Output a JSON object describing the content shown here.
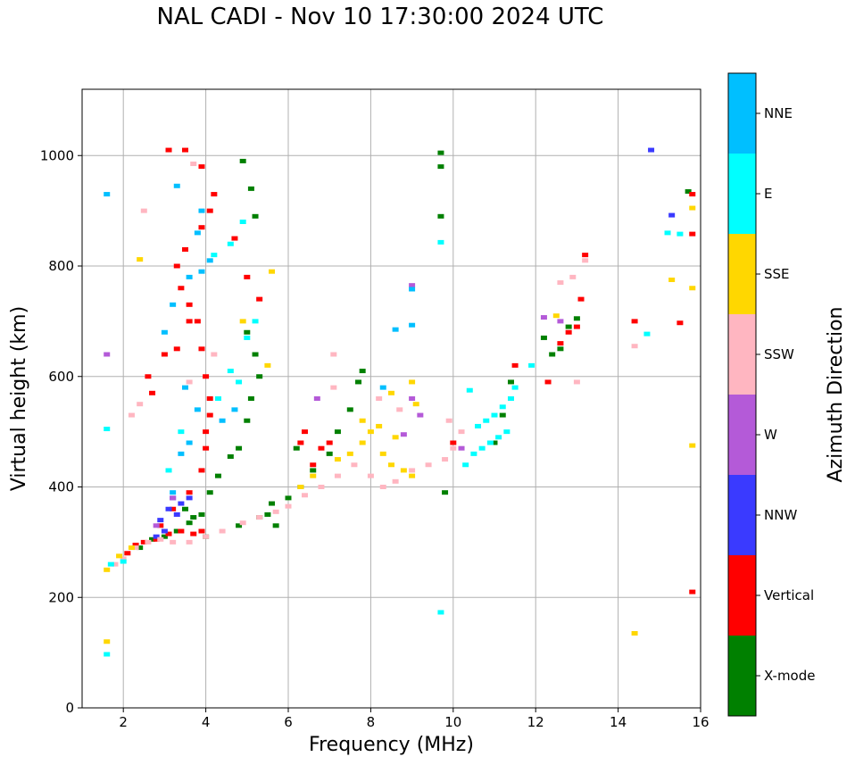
{
  "chart_data": {
    "type": "scatter",
    "title": "NAL CADI - Nov 10 17:30:00 2024 UTC",
    "xlabel": "Frequency (MHz)",
    "ylabel": "Virtual height (km)",
    "xlim": [
      1,
      16
    ],
    "ylim": [
      0,
      1120
    ],
    "xticks": [
      2,
      4,
      6,
      8,
      10,
      12,
      14,
      16
    ],
    "yticks": [
      0,
      200,
      400,
      600,
      800,
      1000
    ],
    "grid": true,
    "colorbar": {
      "label": "Azimuth Direction",
      "categories": [
        {
          "name": "X-mode",
          "color": "#008000"
        },
        {
          "name": "Vertical",
          "color": "#ff0000"
        },
        {
          "name": "NNW",
          "color": "#3a3aff"
        },
        {
          "name": "W",
          "color": "#b45ad8"
        },
        {
          "name": "SSW",
          "color": "#ffb6c1"
        },
        {
          "name": "SSE",
          "color": "#ffd700"
        },
        {
          "name": "E",
          "color": "#00ffff"
        },
        {
          "name": "NNE",
          "color": "#00bfff"
        }
      ]
    },
    "series": [
      {
        "name": "X-mode",
        "points": [
          [
            2.4,
            290
          ],
          [
            2.7,
            305
          ],
          [
            3.0,
            310
          ],
          [
            3.3,
            320
          ],
          [
            3.6,
            335
          ],
          [
            3.9,
            350
          ],
          [
            4.1,
            390
          ],
          [
            4.3,
            420
          ],
          [
            4.6,
            455
          ],
          [
            4.8,
            470
          ],
          [
            5.0,
            520
          ],
          [
            5.1,
            560
          ],
          [
            5.3,
            600
          ],
          [
            5.2,
            640
          ],
          [
            5.0,
            680
          ],
          [
            4.8,
            330
          ],
          [
            5.3,
            345
          ],
          [
            5.6,
            370
          ],
          [
            6.0,
            380
          ],
          [
            6.3,
            400
          ],
          [
            6.6,
            430
          ],
          [
            7.0,
            460
          ],
          [
            7.2,
            500
          ],
          [
            7.5,
            540
          ],
          [
            7.7,
            590
          ],
          [
            7.8,
            610
          ],
          [
            6.2,
            470
          ],
          [
            4.9,
            990
          ],
          [
            5.1,
            940
          ],
          [
            5.2,
            890
          ],
          [
            9.7,
            1005
          ],
          [
            9.7,
            980
          ],
          [
            9.7,
            890
          ],
          [
            9.8,
            390
          ],
          [
            11.0,
            480
          ],
          [
            11.2,
            530
          ],
          [
            11.4,
            590
          ],
          [
            12.4,
            640
          ],
          [
            12.6,
            650
          ],
          [
            12.8,
            690
          ],
          [
            13.0,
            705
          ],
          [
            12.2,
            670
          ],
          [
            15.7,
            935
          ],
          [
            3.5,
            360
          ],
          [
            3.7,
            345
          ],
          [
            4.0,
            310
          ],
          [
            5.7,
            330
          ],
          [
            5.5,
            350
          ]
        ]
      },
      {
        "name": "Vertical",
        "points": [
          [
            2.1,
            280
          ],
          [
            2.3,
            295
          ],
          [
            2.5,
            300
          ],
          [
            2.8,
            305
          ],
          [
            3.1,
            315
          ],
          [
            3.4,
            320
          ],
          [
            3.7,
            315
          ],
          [
            3.9,
            320
          ],
          [
            2.9,
            330
          ],
          [
            3.2,
            360
          ],
          [
            3.6,
            390
          ],
          [
            3.9,
            430
          ],
          [
            4.0,
            470
          ],
          [
            4.0,
            500
          ],
          [
            4.1,
            530
          ],
          [
            4.1,
            560
          ],
          [
            4.0,
            600
          ],
          [
            3.9,
            650
          ],
          [
            3.8,
            700
          ],
          [
            3.6,
            730
          ],
          [
            3.4,
            760
          ],
          [
            3.3,
            800
          ],
          [
            3.5,
            830
          ],
          [
            3.9,
            870
          ],
          [
            4.1,
            900
          ],
          [
            4.2,
            930
          ],
          [
            3.9,
            980
          ],
          [
            3.1,
            1010
          ],
          [
            3.5,
            1010
          ],
          [
            2.6,
            600
          ],
          [
            2.7,
            570
          ],
          [
            3.0,
            640
          ],
          [
            3.3,
            650
          ],
          [
            3.6,
            700
          ],
          [
            4.7,
            850
          ],
          [
            5.0,
            780
          ],
          [
            5.3,
            740
          ],
          [
            6.3,
            480
          ],
          [
            6.4,
            500
          ],
          [
            6.8,
            470
          ],
          [
            7.0,
            480
          ],
          [
            6.6,
            440
          ],
          [
            10.0,
            480
          ],
          [
            11.5,
            620
          ],
          [
            12.3,
            590
          ],
          [
            12.6,
            660
          ],
          [
            12.8,
            680
          ],
          [
            13.0,
            690
          ],
          [
            13.1,
            740
          ],
          [
            13.2,
            820
          ],
          [
            14.4,
            700
          ],
          [
            15.5,
            697
          ],
          [
            15.8,
            858
          ],
          [
            15.8,
            930
          ],
          [
            15.8,
            210
          ]
        ]
      },
      {
        "name": "NNW",
        "points": [
          [
            2.9,
            340
          ],
          [
            3.1,
            360
          ],
          [
            3.2,
            380
          ],
          [
            3.3,
            350
          ],
          [
            3.4,
            370
          ],
          [
            3.0,
            320
          ],
          [
            2.8,
            310
          ],
          [
            15.3,
            892
          ],
          [
            14.8,
            1010
          ],
          [
            3.6,
            380
          ]
        ]
      },
      {
        "name": "W",
        "points": [
          [
            3.2,
            380
          ],
          [
            2.8,
            330
          ],
          [
            6.7,
            560
          ],
          [
            9.0,
            560
          ],
          [
            9.0,
            765
          ],
          [
            9.2,
            530
          ],
          [
            8.8,
            495
          ],
          [
            10.2,
            470
          ],
          [
            12.2,
            707
          ],
          [
            1.6,
            640
          ],
          [
            12.6,
            700
          ]
        ]
      },
      {
        "name": "SSW",
        "points": [
          [
            1.8,
            260
          ],
          [
            2.0,
            270
          ],
          [
            2.3,
            290
          ],
          [
            2.6,
            300
          ],
          [
            2.9,
            305
          ],
          [
            3.2,
            300
          ],
          [
            3.6,
            300
          ],
          [
            4.0,
            310
          ],
          [
            4.4,
            320
          ],
          [
            4.9,
            335
          ],
          [
            5.3,
            345
          ],
          [
            5.7,
            355
          ],
          [
            6.0,
            365
          ],
          [
            6.4,
            385
          ],
          [
            6.8,
            400
          ],
          [
            7.2,
            420
          ],
          [
            7.6,
            440
          ],
          [
            8.0,
            420
          ],
          [
            8.3,
            400
          ],
          [
            8.6,
            410
          ],
          [
            9.0,
            430
          ],
          [
            9.4,
            440
          ],
          [
            9.8,
            450
          ],
          [
            10.0,
            470
          ],
          [
            10.2,
            500
          ],
          [
            9.9,
            520
          ],
          [
            2.2,
            530
          ],
          [
            2.4,
            550
          ],
          [
            3.6,
            590
          ],
          [
            4.2,
            640
          ],
          [
            7.1,
            580
          ],
          [
            7.1,
            640
          ],
          [
            8.2,
            560
          ],
          [
            8.7,
            540
          ],
          [
            12.6,
            770
          ],
          [
            12.9,
            780
          ],
          [
            13.0,
            590
          ],
          [
            14.4,
            655
          ],
          [
            13.2,
            810
          ],
          [
            2.5,
            900
          ],
          [
            3.7,
            985
          ]
        ]
      },
      {
        "name": "SSE",
        "points": [
          [
            1.6,
            250
          ],
          [
            1.9,
            275
          ],
          [
            2.2,
            290
          ],
          [
            6.3,
            400
          ],
          [
            6.6,
            420
          ],
          [
            7.2,
            450
          ],
          [
            7.5,
            460
          ],
          [
            7.8,
            480
          ],
          [
            8.0,
            500
          ],
          [
            8.3,
            460
          ],
          [
            8.5,
            440
          ],
          [
            8.8,
            430
          ],
          [
            9.0,
            420
          ],
          [
            8.2,
            510
          ],
          [
            8.6,
            490
          ],
          [
            9.1,
            550
          ],
          [
            9.0,
            590
          ],
          [
            8.5,
            570
          ],
          [
            7.8,
            520
          ],
          [
            15.3,
            775
          ],
          [
            15.8,
            760
          ],
          [
            15.8,
            905
          ],
          [
            15.8,
            475
          ],
          [
            14.4,
            135
          ],
          [
            1.6,
            120
          ],
          [
            5.6,
            790
          ],
          [
            4.9,
            700
          ],
          [
            2.4,
            812
          ],
          [
            5.5,
            620
          ],
          [
            12.5,
            710
          ]
        ]
      },
      {
        "name": "E",
        "points": [
          [
            1.7,
            260
          ],
          [
            2.0,
            265
          ],
          [
            10.3,
            440
          ],
          [
            10.5,
            460
          ],
          [
            10.7,
            470
          ],
          [
            10.9,
            480
          ],
          [
            11.1,
            490
          ],
          [
            11.3,
            500
          ],
          [
            10.6,
            510
          ],
          [
            10.8,
            520
          ],
          [
            11.0,
            530
          ],
          [
            11.2,
            545
          ],
          [
            11.4,
            560
          ],
          [
            10.4,
            575
          ],
          [
            11.5,
            580
          ],
          [
            15.2,
            860
          ],
          [
            15.5,
            858
          ],
          [
            14.7,
            677
          ],
          [
            9.7,
            843
          ],
          [
            9.7,
            173
          ],
          [
            1.6,
            97
          ],
          [
            3.1,
            430
          ],
          [
            3.4,
            500
          ],
          [
            4.3,
            560
          ],
          [
            4.6,
            610
          ],
          [
            4.8,
            590
          ],
          [
            5.0,
            670
          ],
          [
            5.2,
            700
          ],
          [
            4.6,
            840
          ],
          [
            4.9,
            880
          ],
          [
            4.2,
            820
          ],
          [
            11.9,
            620
          ],
          [
            1.6,
            505
          ]
        ]
      },
      {
        "name": "NNE",
        "points": [
          [
            3.0,
            680
          ],
          [
            3.2,
            730
          ],
          [
            3.6,
            780
          ],
          [
            3.9,
            790
          ],
          [
            4.1,
            810
          ],
          [
            3.8,
            860
          ],
          [
            3.9,
            900
          ],
          [
            3.3,
            945
          ],
          [
            3.5,
            580
          ],
          [
            3.8,
            540
          ],
          [
            3.6,
            480
          ],
          [
            3.4,
            460
          ],
          [
            3.2,
            390
          ],
          [
            9.0,
            758
          ],
          [
            9.0,
            693
          ],
          [
            8.6,
            685
          ],
          [
            8.3,
            580
          ],
          [
            1.6,
            930
          ],
          [
            4.7,
            540
          ],
          [
            4.4,
            520
          ]
        ]
      }
    ]
  }
}
